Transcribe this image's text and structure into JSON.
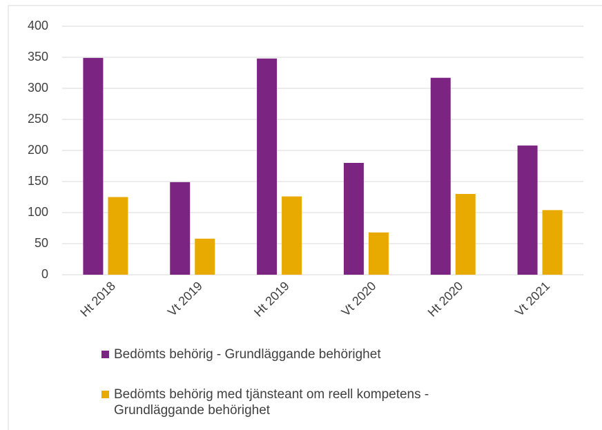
{
  "chart_data": {
    "type": "bar",
    "categories": [
      "Ht 2018",
      "Vt 2019",
      "Ht 2019",
      "Vt 2020",
      "Ht 2020",
      "Vt 2021"
    ],
    "series": [
      {
        "name": "Bedömts behörig - Grundläggande behörighet",
        "color": "#7b2482",
        "values": [
          349,
          149,
          348,
          180,
          317,
          208
        ]
      },
      {
        "name": "Bedömts behörig med tjänsteant om reell kompetens - Grundläggande behörighet",
        "color": "#e8a900",
        "values": [
          125,
          58,
          126,
          68,
          130,
          104
        ]
      }
    ],
    "ylim": [
      0,
      400
    ],
    "yticks": [
      0,
      50,
      100,
      150,
      200,
      250,
      300,
      350,
      400
    ],
    "grid": true,
    "legend": "bottom"
  }
}
